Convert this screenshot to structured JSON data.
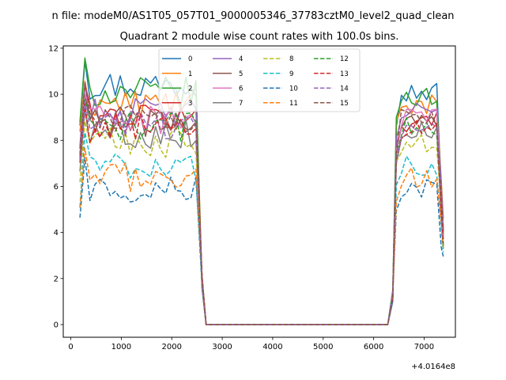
{
  "chart_data": {
    "type": "line",
    "title": "Quadrant 2 module wise count rates with 100.0s bins.",
    "suptitle": "n file: modeM0/AS1T05_057T01_9000005346_37783cztM0_level2_quad_clean",
    "xlabel": "",
    "ylabel": "",
    "offset_text": "+4.0164e8",
    "xlim": [
      -150,
      7620
    ],
    "ylim": [
      -0.55,
      12.1
    ],
    "xticks": [
      0,
      1000,
      2000,
      3000,
      4000,
      5000,
      6000,
      7000
    ],
    "xtick_labels": [
      "0",
      "1000",
      "2000",
      "3000",
      "4000",
      "5000",
      "6000",
      "7000"
    ],
    "yticks": [
      0,
      2,
      4,
      6,
      8,
      10,
      12
    ],
    "ytick_labels": [
      "0",
      "2",
      "4",
      "6",
      "8",
      "10",
      "12"
    ],
    "grid": false,
    "legend": {
      "placement": "top-center",
      "ncol": 4
    },
    "bin_seconds": 100,
    "x_start": 180,
    "gap_x": [
      2680,
      6280
    ],
    "x_end": 7380,
    "series": [
      {
        "name": "0",
        "color": "#1f77b4",
        "dash": "solid",
        "level1": 10.4,
        "level2": 10.1
      },
      {
        "name": "1",
        "color": "#ff7f0e",
        "dash": "solid",
        "level1": 9.6,
        "level2": 9.6
      },
      {
        "name": "2",
        "color": "#2ca02c",
        "dash": "solid",
        "level1": 10.1,
        "level2": 9.9
      },
      {
        "name": "3",
        "color": "#d62728",
        "dash": "solid",
        "level1": 9.0,
        "level2": 8.8
      },
      {
        "name": "4",
        "color": "#9467bd",
        "dash": "solid",
        "level1": 9.2,
        "level2": 9.2
      },
      {
        "name": "5",
        "color": "#8c564b",
        "dash": "solid",
        "level1": 8.8,
        "level2": 8.8
      },
      {
        "name": "6",
        "color": "#e377c2",
        "dash": "solid",
        "level1": 8.9,
        "level2": 8.9
      },
      {
        "name": "7",
        "color": "#7f7f7f",
        "dash": "solid",
        "level1": 8.3,
        "level2": 8.4
      },
      {
        "name": "8",
        "color": "#bcbd22",
        "dash": "dashed",
        "level1": 7.9,
        "level2": 7.8
      },
      {
        "name": "9",
        "color": "#17becf",
        "dash": "dashed",
        "level1": 6.9,
        "level2": 6.9
      },
      {
        "name": "10",
        "color": "#1f77b4",
        "dash": "dashed",
        "level1": 5.9,
        "level2": 5.9
      },
      {
        "name": "11",
        "color": "#ff7f0e",
        "dash": "dashed",
        "level1": 6.4,
        "level2": 6.4
      },
      {
        "name": "12",
        "color": "#2ca02c",
        "dash": "dashed",
        "level1": 8.6,
        "level2": 8.6
      },
      {
        "name": "13",
        "color": "#d62728",
        "dash": "dashed",
        "level1": 8.5,
        "level2": 8.5
      },
      {
        "name": "14",
        "color": "#9467bd",
        "dash": "dashed",
        "level1": 8.7,
        "level2": 8.6
      },
      {
        "name": "15",
        "color": "#8c564b",
        "dash": "dashed",
        "level1": 9.0,
        "level2": 8.9
      }
    ]
  }
}
